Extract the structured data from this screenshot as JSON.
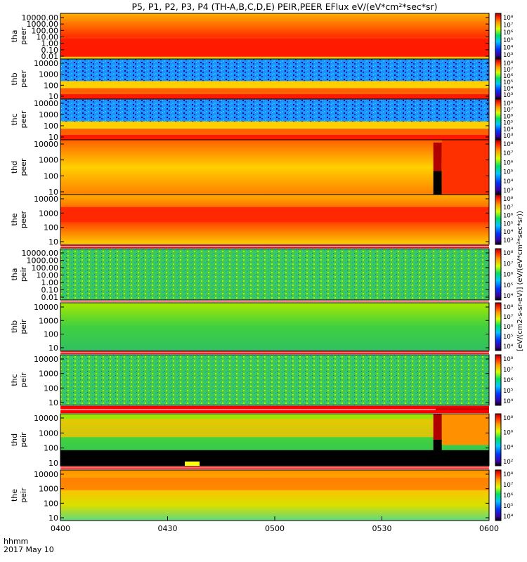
{
  "chart_data": {
    "type": "heatmap",
    "title": "P5, P1, P2, P3, P4 (TH-A,B,C,D,E) PEIR,PEER EFlux eV/(eV*cm²*sec*sr)",
    "xaxis": {
      "format_label": "hhmm",
      "date_label": "2017 May 10",
      "range": [
        "0400",
        "0600"
      ],
      "tick_labels": [
        "0400",
        "0430",
        "0500",
        "0530",
        "0600"
      ]
    },
    "colorbar_label": "[eV/(cm2-s-sr-eV)] (eV/(eV*cm²*sec*sr))",
    "panels": [
      {
        "probe": "tha",
        "species": "peer",
        "ylabel": "tha peer",
        "yticks": [
          "10000.00",
          "1000.00",
          "100.00",
          "10.00",
          "1.00",
          "0.10",
          "0.01"
        ],
        "cbar_ticks": [
          "10⁸",
          "10⁷",
          "10⁶",
          "10⁵",
          "10⁴",
          "10³"
        ]
      },
      {
        "probe": "thb",
        "species": "peer",
        "ylabel": "thb peer",
        "yticks": [
          "10000",
          "1000",
          "100",
          "10"
        ],
        "cbar_ticks": [
          "10⁸",
          "10⁷",
          "10⁶",
          "10⁵",
          "10⁴",
          "10³"
        ]
      },
      {
        "probe": "thc",
        "species": "peer",
        "ylabel": "thc peer",
        "yticks": [
          "10000",
          "1000",
          "100",
          "10"
        ],
        "cbar_ticks": [
          "10⁸",
          "10⁷",
          "10⁶",
          "10⁵",
          "10⁴",
          "10³"
        ]
      },
      {
        "probe": "thd",
        "species": "peer",
        "ylabel": "thd peer",
        "yticks": [
          "10000",
          "1000",
          "100",
          "10"
        ],
        "cbar_ticks": [
          "10⁸",
          "10⁷",
          "10⁶",
          "10⁵",
          "10⁴",
          "10³"
        ]
      },
      {
        "probe": "the",
        "species": "peer",
        "ylabel": "the peer",
        "yticks": [
          "10000",
          "1000",
          "100",
          "10"
        ],
        "cbar_ticks": [
          "10⁸",
          "10⁷",
          "10⁶",
          "10⁵",
          "10⁴",
          "10³"
        ]
      },
      {
        "probe": "tha",
        "species": "peir",
        "ylabel": "tha peir",
        "yticks": [
          "10000.00",
          "1000.00",
          "100.00",
          "10.00",
          "1.00",
          "0.10",
          "0.01"
        ],
        "cbar_ticks": [
          "10⁸",
          "10⁷",
          "10⁶",
          "10⁵",
          "10⁴"
        ]
      },
      {
        "probe": "thb",
        "species": "peir",
        "ylabel": "thb peir",
        "yticks": [
          "10000",
          "1000",
          "100",
          "10"
        ],
        "cbar_ticks": [
          "10⁸",
          "10⁷",
          "10⁶",
          "10⁵",
          "10⁴"
        ]
      },
      {
        "probe": "thc",
        "species": "peir",
        "ylabel": "thc peir",
        "yticks": [
          "10000",
          "1000",
          "100",
          "10"
        ],
        "cbar_ticks": [
          "10⁸",
          "10⁷",
          "10⁶",
          "10⁵",
          "10⁴"
        ]
      },
      {
        "probe": "thd",
        "species": "peir",
        "ylabel": "thd peir",
        "yticks": [
          "10000",
          "1000",
          "100",
          "10"
        ],
        "cbar_ticks": [
          "10⁸",
          "10⁶",
          "10⁴",
          "10²"
        ]
      },
      {
        "probe": "the",
        "species": "peir",
        "ylabel": "the peir",
        "yticks": [
          "10000",
          "1000",
          "100",
          "10"
        ],
        "cbar_ticks": [
          "10⁸",
          "10⁷",
          "10⁶",
          "10⁵",
          "10⁴"
        ]
      }
    ]
  }
}
